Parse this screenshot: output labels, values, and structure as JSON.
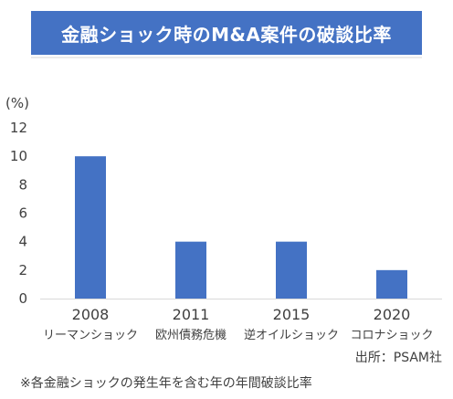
{
  "chart_data": {
    "type": "bar",
    "title": "金融ショック時のM&A案件の破談比率",
    "ylabel": "(%)",
    "ylim": [
      0,
      12
    ],
    "yticks": [
      0,
      2,
      4,
      6,
      8,
      10,
      12
    ],
    "grid": false,
    "categories": [
      "2008",
      "2011",
      "2015",
      "2020"
    ],
    "subcategories": [
      "リーマンショック",
      "欧州債務危機",
      "逆オイルショック",
      "コロナショック"
    ],
    "values": [
      10,
      4,
      4,
      2
    ],
    "bar_color": "#4472c4"
  },
  "source": "出所：PSAM社",
  "note": "※各金融ショックの発生年を含む年の年間破談比率"
}
